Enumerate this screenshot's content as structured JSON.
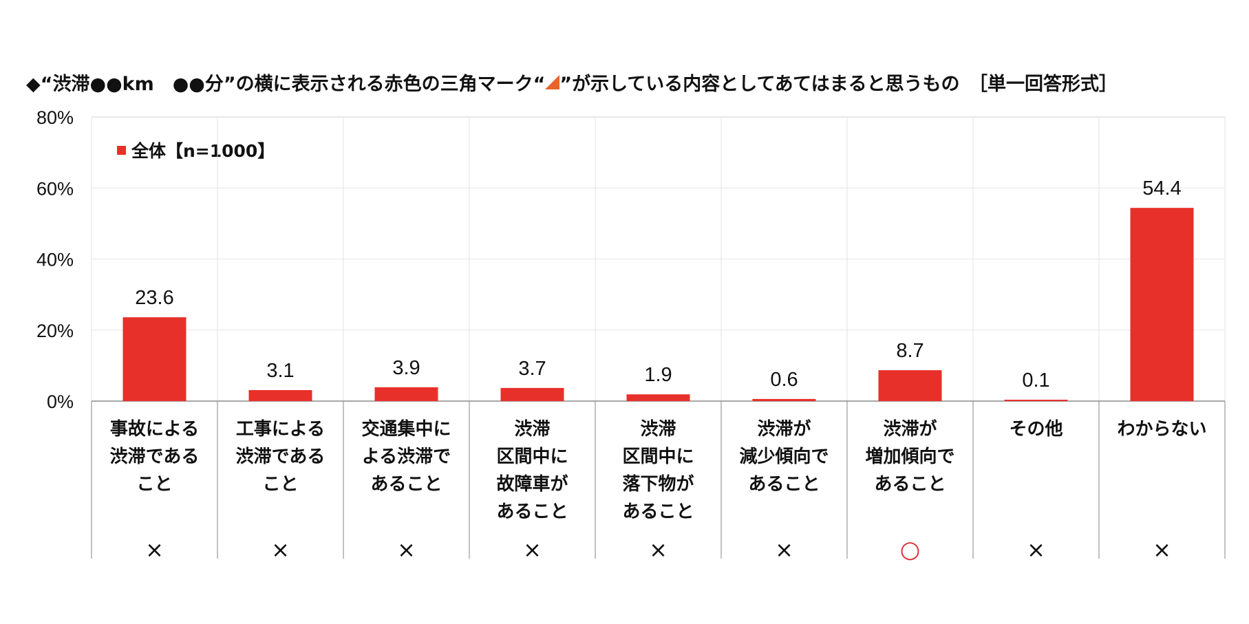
{
  "chart_data": {
    "type": "bar",
    "title_parts": [
      "◆“渋滞●●km　●●分”の横に表示される赤色の三角マーク“",
      "”が示している内容としてあてはまると思うもの　［単一回答形式］"
    ],
    "title_icon": "red-triangle-icon",
    "legend": "全体【n=1000】",
    "ytick_labels": [
      "80%",
      "60%",
      "40%",
      "20%",
      "0%"
    ],
    "ylim": [
      0,
      80
    ],
    "categories": [
      [
        "事故による",
        "渋滞である",
        "こと"
      ],
      [
        "工事による",
        "渋滞である",
        "こと"
      ],
      [
        "交通集中に",
        "よる渋滞で",
        "あること"
      ],
      [
        "渋滞",
        "区間中に",
        "故障車が",
        "あること"
      ],
      [
        "渋滞",
        "区間中に",
        "落下物が",
        "あること"
      ],
      [
        "渋滞が",
        "減少傾向で",
        "あること"
      ],
      [
        "渋滞が",
        "増加傾向で",
        "あること"
      ],
      [
        "その他"
      ],
      [
        "わからない"
      ]
    ],
    "series": [
      {
        "name": "全体【n=1000】",
        "values": [
          23.6,
          3.1,
          3.9,
          3.7,
          1.9,
          0.6,
          8.7,
          0.1,
          54.4
        ]
      }
    ],
    "value_labels": [
      "23.6",
      "3.1",
      "3.9",
      "3.7",
      "1.9",
      "0.6",
      "8.7",
      "0.1",
      "54.4"
    ],
    "answer_marks": [
      "×",
      "×",
      "×",
      "×",
      "×",
      "×",
      "○",
      "×",
      "×"
    ],
    "colors": {
      "bar": "#E8302A",
      "correct": "#D8343A",
      "triangle": "#E8642A"
    }
  }
}
